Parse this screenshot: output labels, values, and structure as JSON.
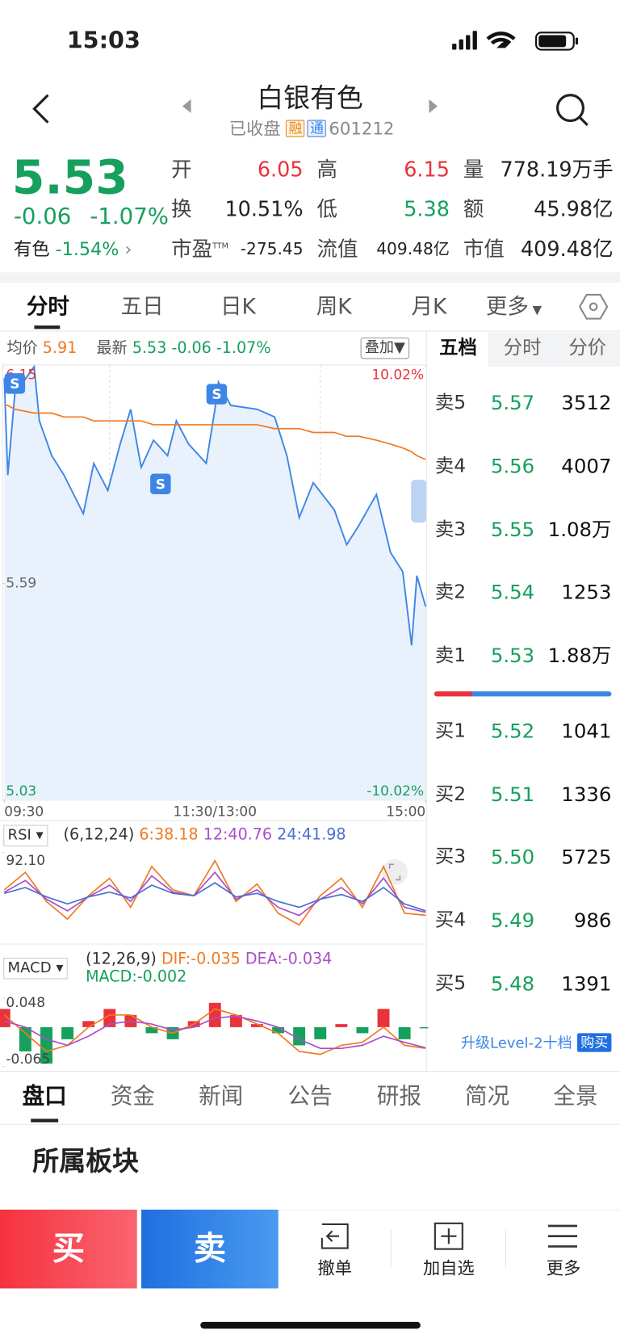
{
  "status": {
    "time": "15:03"
  },
  "header": {
    "name": "白银有色",
    "status": "已收盘",
    "tags": [
      "融",
      "通"
    ],
    "code": "601212"
  },
  "quote": {
    "price": "5.53",
    "change": "-0.06",
    "change_pct": "-1.07%",
    "sector": "有色",
    "sector_pct": "-1.54%",
    "fields": [
      {
        "label": "开",
        "value": "6.05"
      },
      {
        "label": "高",
        "value": "6.15"
      },
      {
        "label": "量",
        "value": "778.19万手"
      },
      {
        "label": "换",
        "value": "10.51%"
      },
      {
        "label": "低",
        "value": "5.38"
      },
      {
        "label": "额",
        "value": "45.98亿"
      },
      {
        "label": "市盈",
        "sup": "TTM",
        "value": "-275.45"
      },
      {
        "label": "流值",
        "value": "409.48亿"
      },
      {
        "label": "市值",
        "value": "409.48亿"
      }
    ]
  },
  "chart_tabs": [
    "分时",
    "五日",
    "日K",
    "周K",
    "月K",
    "更多"
  ],
  "info_bar": {
    "avg_label": "均价",
    "avg": "5.91",
    "last_label": "最新",
    "last": "5.53",
    "change": "-0.06",
    "pct": "-1.07%",
    "overlay": "叠加"
  },
  "chart_data": [
    {
      "type": "line",
      "x": [
        0,
        2,
        6,
        17,
        20,
        27,
        34,
        45,
        51,
        59,
        66,
        72,
        78,
        85,
        93,
        98,
        105,
        115,
        120,
        122,
        129,
        144,
        154,
        161,
        168,
        176,
        188,
        195,
        202,
        212,
        220,
        227,
        232,
        235,
        240
      ],
      "xlim": [
        0,
        240
      ],
      "xticks": [
        {
          "value": 0,
          "label": "09:30"
        },
        {
          "value": 120,
          "label": "11:30/13:00"
        },
        {
          "value": 240,
          "label": "15:00"
        }
      ],
      "ylim": [
        5.03,
        6.15
      ],
      "yticks": [
        6.15,
        5.59,
        5.03
      ],
      "y2lim": [
        -10.02,
        10.02
      ],
      "y2ticks": [
        {
          "value": 10.02,
          "label": "10.02%"
        },
        {
          "value": -10.02,
          "label": "-10.02%"
        }
      ],
      "series": [
        {
          "color": "#3d86e6",
          "values": [
            6.12,
            5.87,
            6.08,
            6.15,
            6.01,
            5.92,
            5.87,
            5.77,
            5.9,
            5.83,
            5.95,
            6.04,
            5.89,
            5.96,
            5.92,
            6.01,
            5.95,
            5.9,
            6.04,
            6.11,
            6.05,
            6.04,
            6.02,
            5.92,
            5.76,
            5.85,
            5.78,
            5.69,
            5.74,
            5.82,
            5.67,
            5.62,
            5.43,
            5.61,
            5.53
          ]
        },
        {
          "color": "#f07a22",
          "values": [
            6.05,
            6.05,
            6.04,
            6.03,
            6.03,
            6.03,
            6.02,
            6.02,
            6.01,
            6.01,
            6.01,
            6.01,
            6.01,
            6.0,
            6.0,
            6.0,
            6.0,
            6.0,
            6.0,
            6.0,
            6.0,
            6.0,
            5.99,
            5.99,
            5.99,
            5.98,
            5.98,
            5.97,
            5.97,
            5.96,
            5.95,
            5.94,
            5.93,
            5.92,
            5.91
          ]
        }
      ],
      "annotations": [
        {
          "label": "S",
          "x": 6
        },
        {
          "label": "S",
          "x": 89
        },
        {
          "label": "S",
          "x": 121
        }
      ]
    },
    {
      "type": "line",
      "title": "RSI",
      "params": "(6,12,24)",
      "x": [
        0,
        12,
        24,
        36,
        48,
        60,
        72,
        84,
        96,
        108,
        120,
        132,
        144,
        156,
        168,
        180,
        192,
        204,
        216,
        228,
        240
      ],
      "xlim": [
        0,
        240
      ],
      "ylim": [
        15,
        92.1
      ],
      "yticks": [
        {
          "value": 92.1,
          "label": "92.10"
        }
      ],
      "series": [
        {
          "name": "6:38.18",
          "color": "#f07a22",
          "values": [
            60,
            75,
            50,
            35,
            55,
            70,
            45,
            80,
            60,
            55,
            85,
            50,
            65,
            40,
            30,
            55,
            70,
            45,
            80,
            40,
            38.18
          ]
        },
        {
          "name": "12:40.76",
          "color": "#a94fc9",
          "values": [
            58,
            68,
            52,
            42,
            54,
            64,
            50,
            72,
            58,
            55,
            75,
            52,
            60,
            45,
            38,
            52,
            62,
            48,
            70,
            45,
            40.76
          ]
        },
        {
          "name": "24:41.98",
          "color": "#4a6fd0",
          "values": [
            57,
            62,
            54,
            48,
            54,
            58,
            53,
            64,
            57,
            55,
            66,
            54,
            57,
            50,
            45,
            52,
            56,
            50,
            62,
            48,
            41.98
          ]
        }
      ]
    },
    {
      "type": "macd",
      "title": "MACD",
      "params": "(12,26,9)",
      "x": [
        0,
        12,
        24,
        36,
        48,
        60,
        72,
        84,
        96,
        108,
        120,
        132,
        144,
        156,
        168,
        180,
        192,
        204,
        216,
        228,
        240
      ],
      "xlim": [
        0,
        240
      ],
      "ylim": [
        -0.065,
        0.048
      ],
      "yticks": [
        0.048,
        -0.065
      ],
      "up_color": "#e8333b",
      "down_color": "#16a05d",
      "histogram": {
        "name": "MACD:-0.002",
        "values": [
          0.03,
          -0.04,
          -0.06,
          -0.02,
          0.01,
          0.03,
          0.02,
          -0.01,
          -0.02,
          0.01,
          0.04,
          0.02,
          0.005,
          -0.01,
          -0.03,
          -0.02,
          0.005,
          -0.01,
          0.03,
          -0.02,
          -0.002
        ]
      },
      "series": [
        {
          "name": "DIF:-0.035",
          "color": "#f07a22",
          "values": [
            0.02,
            -0.01,
            -0.04,
            -0.03,
            0,
            0.02,
            0.02,
            0,
            -0.01,
            0.005,
            0.03,
            0.02,
            0.005,
            -0.01,
            -0.04,
            -0.045,
            -0.03,
            -0.025,
            0,
            -0.03,
            -0.035
          ]
        },
        {
          "name": "DEA:-0.034",
          "color": "#a94fc9",
          "values": [
            0.01,
            0,
            -0.02,
            -0.03,
            -0.015,
            0.005,
            0.01,
            0.005,
            -0.005,
            0,
            0.015,
            0.018,
            0.01,
            0,
            -0.02,
            -0.035,
            -0.035,
            -0.03,
            -0.015,
            -0.025,
            -0.034
          ]
        }
      ]
    }
  ],
  "order_book": {
    "tabs": [
      "五档",
      "分时",
      "分价"
    ],
    "asks": [
      {
        "label": "卖5",
        "price": "5.57",
        "volume": "3512"
      },
      {
        "label": "卖4",
        "price": "5.56",
        "volume": "4007"
      },
      {
        "label": "卖3",
        "price": "5.55",
        "volume": "1.08万"
      },
      {
        "label": "卖2",
        "price": "5.54",
        "volume": "1253"
      },
      {
        "label": "卖1",
        "price": "5.53",
        "volume": "1.88万"
      }
    ],
    "bids": [
      {
        "label": "买1",
        "price": "5.52",
        "volume": "1041"
      },
      {
        "label": "买2",
        "price": "5.51",
        "volume": "1336"
      },
      {
        "label": "买3",
        "price": "5.50",
        "volume": "5725"
      },
      {
        "label": "买4",
        "price": "5.49",
        "volume": "986"
      },
      {
        "label": "买5",
        "price": "5.48",
        "volume": "1391"
      }
    ],
    "upgrade": "升级Level-2十档",
    "buy_button": "购买"
  },
  "bottom_tabs": [
    "盘口",
    "资金",
    "新闻",
    "公告",
    "研报",
    "简况",
    "全景"
  ],
  "section_title": "所属板块",
  "actions": {
    "buy": "买",
    "sell": "卖",
    "items": [
      "撤单",
      "加自选",
      "更多"
    ]
  }
}
